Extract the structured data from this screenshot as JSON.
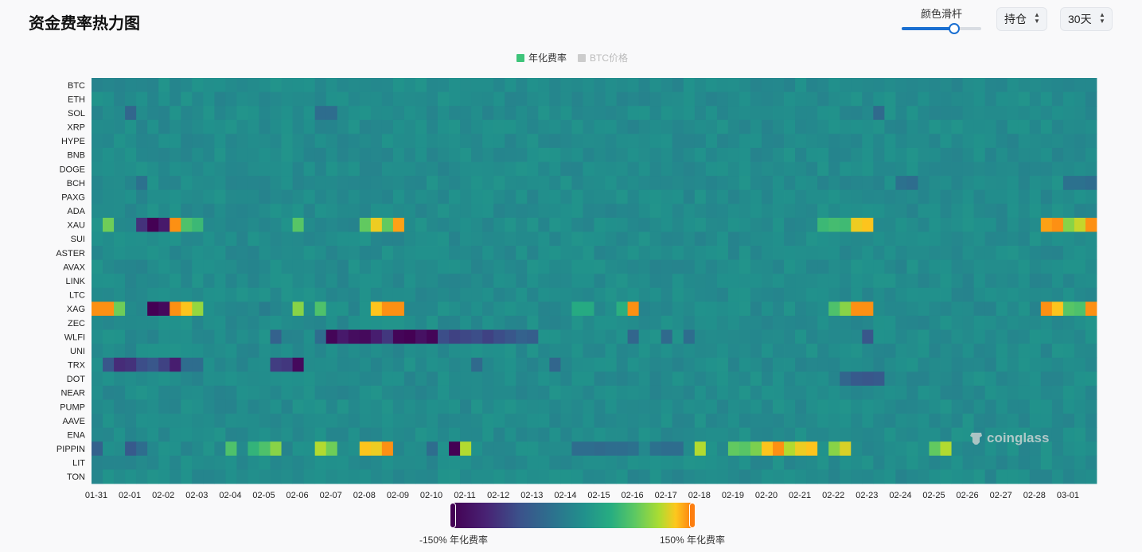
{
  "header": {
    "title": "资金费率热力图",
    "slider_label": "颜色滑杆",
    "slider_value": 0.66,
    "select_hold": "持仓",
    "select_range": "30天"
  },
  "colors": {
    "accent": "#1a6fd1",
    "legend_active": "#3ec47a",
    "legend_inactive": "#cccccc",
    "scale_min": "#440154",
    "scale_max": "#fd7e0f"
  },
  "icons": {
    "watermark": "coinglass-logo-icon",
    "select_chevron": "chevron-up-down-icon"
  },
  "chart_data": {
    "type": "heatmap",
    "legend": [
      {
        "name": "年化费率",
        "active": true
      },
      {
        "name": "BTC价格",
        "active": false
      }
    ],
    "x_labels": [
      "01-31",
      "02-01",
      "02-02",
      "02-03",
      "02-04",
      "02-05",
      "02-06",
      "02-07",
      "02-08",
      "02-09",
      "02-10",
      "02-11",
      "02-12",
      "02-13",
      "02-14",
      "02-15",
      "02-16",
      "02-17",
      "02-18",
      "02-19",
      "02-20",
      "02-21",
      "02-22",
      "02-23",
      "02-24",
      "02-25",
      "02-26",
      "02-27",
      "02-28",
      "03-01"
    ],
    "columns_per_day": 3,
    "num_columns": 90,
    "y_labels": [
      "BTC",
      "ETH",
      "SOL",
      "XRP",
      "HYPE",
      "BNB",
      "DOGE",
      "BCH",
      "PAXG",
      "ADA",
      "XAU",
      "SUI",
      "ASTER",
      "AVAX",
      "LINK",
      "LTC",
      "XAG",
      "ZEC",
      "WLFI",
      "UNI",
      "TRX",
      "DOT",
      "NEAR",
      "PUMP",
      "AAVE",
      "ENA",
      "PIPPIN",
      "LIT",
      "TON"
    ],
    "scale": {
      "min": -150,
      "max": 150,
      "min_label": "-150% 年化费率",
      "max_label": "150% 年化费率"
    },
    "baseline": 8,
    "highlights": [
      {
        "row": "XAU",
        "col": 1,
        "value": 85
      },
      {
        "row": "XAU",
        "col": 4,
        "value": -95
      },
      {
        "row": "XAU",
        "col": 5,
        "value": -150
      },
      {
        "row": "XAU",
        "col": 6,
        "value": -120
      },
      {
        "row": "XAU",
        "col": 7,
        "value": 145
      },
      {
        "row": "XAU",
        "col": 8,
        "value": 70
      },
      {
        "row": "XAU",
        "col": 9,
        "value": 60
      },
      {
        "row": "XAU",
        "col": 18,
        "value": 75
      },
      {
        "row": "XAU",
        "col": 24,
        "value": 80
      },
      {
        "row": "XAU",
        "col": 25,
        "value": 125
      },
      {
        "row": "XAU",
        "col": 26,
        "value": 80
      },
      {
        "row": "XAU",
        "col": 27,
        "value": 140
      },
      {
        "row": "XAU",
        "col": 65,
        "value": 60
      },
      {
        "row": "XAU",
        "col": 66,
        "value": 65
      },
      {
        "row": "XAU",
        "col": 67,
        "value": 62
      },
      {
        "row": "XAU",
        "col": 68,
        "value": 125
      },
      {
        "row": "XAU",
        "col": 69,
        "value": 130
      },
      {
        "row": "XAU",
        "col": 85,
        "value": 140
      },
      {
        "row": "XAU",
        "col": 86,
        "value": 145
      },
      {
        "row": "XAU",
        "col": 87,
        "value": 95
      },
      {
        "row": "XAU",
        "col": 88,
        "value": 115
      },
      {
        "row": "XAU",
        "col": 89,
        "value": 145
      },
      {
        "row": "XAG",
        "col": 0,
        "value": 145
      },
      {
        "row": "XAG",
        "col": 1,
        "value": 145
      },
      {
        "row": "XAG",
        "col": 2,
        "value": 85
      },
      {
        "row": "XAG",
        "col": 5,
        "value": -150
      },
      {
        "row": "XAG",
        "col": 6,
        "value": -140
      },
      {
        "row": "XAG",
        "col": 7,
        "value": 145
      },
      {
        "row": "XAG",
        "col": 8,
        "value": 130
      },
      {
        "row": "XAG",
        "col": 9,
        "value": 100
      },
      {
        "row": "XAG",
        "col": 15,
        "value": -10
      },
      {
        "row": "XAG",
        "col": 18,
        "value": 95
      },
      {
        "row": "XAG",
        "col": 20,
        "value": 70
      },
      {
        "row": "XAG",
        "col": 25,
        "value": 130
      },
      {
        "row": "XAG",
        "col": 26,
        "value": 145
      },
      {
        "row": "XAG",
        "col": 27,
        "value": 145
      },
      {
        "row": "XAG",
        "col": 43,
        "value": 45
      },
      {
        "row": "XAG",
        "col": 44,
        "value": 45
      },
      {
        "row": "XAG",
        "col": 47,
        "value": 50
      },
      {
        "row": "XAG",
        "col": 48,
        "value": 145
      },
      {
        "row": "XAG",
        "col": 66,
        "value": 70
      },
      {
        "row": "XAG",
        "col": 67,
        "value": 95
      },
      {
        "row": "XAG",
        "col": 68,
        "value": 145
      },
      {
        "row": "XAG",
        "col": 69,
        "value": 145
      },
      {
        "row": "XAG",
        "col": 85,
        "value": 145
      },
      {
        "row": "XAG",
        "col": 86,
        "value": 130
      },
      {
        "row": "XAG",
        "col": 87,
        "value": 75
      },
      {
        "row": "XAG",
        "col": 88,
        "value": 70
      },
      {
        "row": "XAG",
        "col": 89,
        "value": 145
      },
      {
        "row": "WLFI",
        "col": 16,
        "value": -45
      },
      {
        "row": "WLFI",
        "col": 20,
        "value": -30
      },
      {
        "row": "WLFI",
        "col": 21,
        "value": -145
      },
      {
        "row": "WLFI",
        "col": 22,
        "value": -120
      },
      {
        "row": "WLFI",
        "col": 23,
        "value": -135
      },
      {
        "row": "WLFI",
        "col": 24,
        "value": -140
      },
      {
        "row": "WLFI",
        "col": 25,
        "value": -115
      },
      {
        "row": "WLFI",
        "col": 26,
        "value": -90
      },
      {
        "row": "WLFI",
        "col": 27,
        "value": -145
      },
      {
        "row": "WLFI",
        "col": 28,
        "value": -150
      },
      {
        "row": "WLFI",
        "col": 29,
        "value": -130
      },
      {
        "row": "WLFI",
        "col": 30,
        "value": -145
      },
      {
        "row": "WLFI",
        "col": 31,
        "value": -70
      },
      {
        "row": "WLFI",
        "col": 32,
        "value": -80
      },
      {
        "row": "WLFI",
        "col": 33,
        "value": -75
      },
      {
        "row": "WLFI",
        "col": 34,
        "value": -70
      },
      {
        "row": "WLFI",
        "col": 35,
        "value": -80
      },
      {
        "row": "WLFI",
        "col": 36,
        "value": -70
      },
      {
        "row": "WLFI",
        "col": 37,
        "value": -60
      },
      {
        "row": "WLFI",
        "col": 38,
        "value": -45
      },
      {
        "row": "WLFI",
        "col": 39,
        "value": -50
      },
      {
        "row": "WLFI",
        "col": 48,
        "value": -40
      },
      {
        "row": "WLFI",
        "col": 51,
        "value": -35
      },
      {
        "row": "WLFI",
        "col": 53,
        "value": -30
      },
      {
        "row": "WLFI",
        "col": 69,
        "value": -60
      },
      {
        "row": "TRX",
        "col": 1,
        "value": -60
      },
      {
        "row": "TRX",
        "col": 2,
        "value": -100
      },
      {
        "row": "TRX",
        "col": 3,
        "value": -95
      },
      {
        "row": "TRX",
        "col": 4,
        "value": -70
      },
      {
        "row": "TRX",
        "col": 5,
        "value": -60
      },
      {
        "row": "TRX",
        "col": 6,
        "value": -80
      },
      {
        "row": "TRX",
        "col": 7,
        "value": -115
      },
      {
        "row": "TRX",
        "col": 8,
        "value": -30
      },
      {
        "row": "TRX",
        "col": 9,
        "value": -30
      },
      {
        "row": "TRX",
        "col": 16,
        "value": -85
      },
      {
        "row": "TRX",
        "col": 17,
        "value": -90
      },
      {
        "row": "TRX",
        "col": 18,
        "value": -140
      },
      {
        "row": "TRX",
        "col": 34,
        "value": -35
      },
      {
        "row": "TRX",
        "col": 41,
        "value": -40
      },
      {
        "row": "DOT",
        "col": 67,
        "value": -40
      },
      {
        "row": "DOT",
        "col": 68,
        "value": -55
      },
      {
        "row": "DOT",
        "col": 69,
        "value": -60
      },
      {
        "row": "DOT",
        "col": 70,
        "value": -55
      },
      {
        "row": "PIPPIN",
        "col": 0,
        "value": -45
      },
      {
        "row": "PIPPIN",
        "col": 3,
        "value": -55
      },
      {
        "row": "PIPPIN",
        "col": 4,
        "value": -30
      },
      {
        "row": "PIPPIN",
        "col": 12,
        "value": 70
      },
      {
        "row": "PIPPIN",
        "col": 14,
        "value": 55
      },
      {
        "row": "PIPPIN",
        "col": 15,
        "value": 70
      },
      {
        "row": "PIPPIN",
        "col": 16,
        "value": 95
      },
      {
        "row": "PIPPIN",
        "col": 20,
        "value": 110
      },
      {
        "row": "PIPPIN",
        "col": 21,
        "value": 85
      },
      {
        "row": "PIPPIN",
        "col": 24,
        "value": 130
      },
      {
        "row": "PIPPIN",
        "col": 25,
        "value": 125
      },
      {
        "row": "PIPPIN",
        "col": 26,
        "value": 145
      },
      {
        "row": "PIPPIN",
        "col": 30,
        "value": -30
      },
      {
        "row": "PIPPIN",
        "col": 32,
        "value": -150
      },
      {
        "row": "PIPPIN",
        "col": 33,
        "value": 110
      },
      {
        "row": "PIPPIN",
        "col": 43,
        "value": -30
      },
      {
        "row": "PIPPIN",
        "col": 44,
        "value": -30
      },
      {
        "row": "PIPPIN",
        "col": 45,
        "value": -35
      },
      {
        "row": "PIPPIN",
        "col": 46,
        "value": -30
      },
      {
        "row": "PIPPIN",
        "col": 47,
        "value": -30
      },
      {
        "row": "PIPPIN",
        "col": 48,
        "value": -25
      },
      {
        "row": "PIPPIN",
        "col": 50,
        "value": -25
      },
      {
        "row": "PIPPIN",
        "col": 51,
        "value": -30
      },
      {
        "row": "PIPPIN",
        "col": 52,
        "value": -30
      },
      {
        "row": "PIPPIN",
        "col": 54,
        "value": 110
      },
      {
        "row": "PIPPIN",
        "col": 57,
        "value": 80
      },
      {
        "row": "PIPPIN",
        "col": 58,
        "value": 75
      },
      {
        "row": "PIPPIN",
        "col": 59,
        "value": 90
      },
      {
        "row": "PIPPIN",
        "col": 60,
        "value": 130
      },
      {
        "row": "PIPPIN",
        "col": 61,
        "value": 145
      },
      {
        "row": "PIPPIN",
        "col": 62,
        "value": 110
      },
      {
        "row": "PIPPIN",
        "col": 63,
        "value": 125
      },
      {
        "row": "PIPPIN",
        "col": 64,
        "value": 130
      },
      {
        "row": "PIPPIN",
        "col": 66,
        "value": 95
      },
      {
        "row": "PIPPIN",
        "col": 67,
        "value": 120
      },
      {
        "row": "PIPPIN",
        "col": 75,
        "value": 80
      },
      {
        "row": "PIPPIN",
        "col": 76,
        "value": 110
      },
      {
        "row": "SOL",
        "col": 3,
        "value": -40
      },
      {
        "row": "SOL",
        "col": 20,
        "value": -30
      },
      {
        "row": "SOL",
        "col": 21,
        "value": -30
      },
      {
        "row": "SOL",
        "col": 70,
        "value": -35
      },
      {
        "row": "BCH",
        "col": 4,
        "value": -25
      },
      {
        "row": "BCH",
        "col": 72,
        "value": -25
      },
      {
        "row": "BCH",
        "col": 73,
        "value": -30
      },
      {
        "row": "BCH",
        "col": 87,
        "value": -25
      },
      {
        "row": "BCH",
        "col": 88,
        "value": -25
      },
      {
        "row": "BCH",
        "col": 89,
        "value": -30
      }
    ]
  }
}
